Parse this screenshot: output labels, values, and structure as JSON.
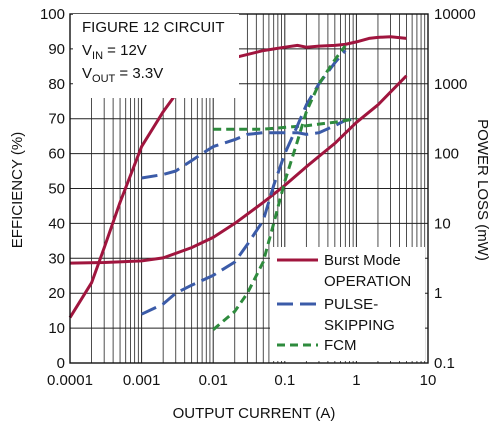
{
  "chart_data": {
    "type": "line",
    "annotation": {
      "line1": "FIGURE 12 CIRCUIT",
      "line2_prefix": "V",
      "line2_sub": "IN",
      "line2_suffix": " = 12V",
      "line3_prefix": "V",
      "line3_sub": "OUT",
      "line3_suffix": " = 3.3V"
    },
    "xlabel": "OUTPUT CURRENT (A)",
    "ylabel_left": "EFFICIENCY (%)",
    "ylabel_right": "POWER LOSS (mW)",
    "x_scale": "log",
    "xlim": [
      0.0001,
      10
    ],
    "y_left_lim": [
      0,
      100
    ],
    "y_right_scale": "log",
    "y_right_lim": [
      0.1,
      10000
    ],
    "x_ticks": [
      "0.0001",
      "0.001",
      "0.01",
      "0.1",
      "1",
      "10"
    ],
    "y_left_ticks": [
      "0",
      "10",
      "20",
      "30",
      "40",
      "50",
      "60",
      "70",
      "80",
      "90",
      "100"
    ],
    "y_right_ticks": [
      "0.1",
      "1",
      "10",
      "100",
      "1000",
      "10000"
    ],
    "grid": true,
    "legend_position": "bottom-right",
    "legend": [
      {
        "line1": "Burst Mode",
        "line2": "OPERATION",
        "color": "#a0153e",
        "dash": "solid"
      },
      {
        "line1": "PULSE-",
        "line2": "SKIPPING",
        "color": "#3b5ba8",
        "dash": "long-dash"
      },
      {
        "line1": "FCM",
        "line2": "",
        "color": "#2e8b3d",
        "dash": "short-dash"
      }
    ],
    "series": [
      {
        "key": "burst_eff",
        "axis": "left",
        "color": "#a0153e",
        "dash": "solid",
        "x": [
          0.0001,
          0.0002,
          0.0003,
          0.0005,
          0.001,
          0.002,
          0.003,
          0.005,
          0.007,
          0.01,
          0.02,
          0.05,
          0.1,
          0.15,
          0.2,
          0.3,
          0.5,
          0.7,
          1,
          1.5,
          2,
          3,
          5
        ],
        "y": [
          13,
          23,
          33,
          46,
          62,
          72,
          77,
          81.5,
          84,
          85.5,
          87.5,
          89.5,
          90.5,
          91,
          90.5,
          90.8,
          91,
          91.3,
          92,
          93,
          93.3,
          93.5,
          93
        ]
      },
      {
        "key": "pulse_eff",
        "axis": "left",
        "color": "#3b5ba8",
        "dash": "long-dash",
        "x": [
          0.001,
          0.002,
          0.003,
          0.005,
          0.007,
          0.01,
          0.02,
          0.03,
          0.05,
          0.07,
          0.1,
          0.15,
          0.2,
          0.3,
          0.5,
          0.7,
          1
        ],
        "y": [
          53,
          54,
          55,
          58,
          60,
          62,
          64,
          65.5,
          66,
          66,
          66,
          66,
          65.5,
          66,
          68,
          69.5,
          70
        ]
      },
      {
        "key": "fcm_eff",
        "axis": "left",
        "color": "#2e8b3d",
        "dash": "short-dash",
        "x": [
          0.01,
          0.02,
          0.05,
          0.1,
          0.2,
          0.5,
          1
        ],
        "y": [
          67,
          67,
          67,
          67.5,
          68,
          69,
          70
        ]
      },
      {
        "key": "burst_loss",
        "axis": "right",
        "color": "#a0153e",
        "dash": "solid",
        "x": [
          0.0001,
          0.0003,
          0.001,
          0.002,
          0.005,
          0.01,
          0.02,
          0.05,
          0.1,
          0.2,
          0.5,
          1,
          2,
          5
        ],
        "y": [
          2.7,
          2.75,
          2.9,
          3.2,
          4.5,
          6.3,
          10,
          20,
          35,
          65,
          140,
          280,
          500,
          1300
        ]
      },
      {
        "key": "pulse_loss",
        "axis": "right",
        "color": "#3b5ba8",
        "dash": "long-dash",
        "x": [
          0.001,
          0.002,
          0.003,
          0.005,
          0.01,
          0.02,
          0.03,
          0.05,
          0.07,
          0.1,
          0.15,
          0.2,
          0.3,
          0.5,
          0.7
        ],
        "y": [
          0.5,
          0.7,
          1.0,
          1.3,
          1.8,
          2.8,
          5,
          11,
          35,
          100,
          250,
          500,
          1000,
          2000,
          3000
        ]
      },
      {
        "key": "fcm_loss",
        "axis": "right",
        "color": "#2e8b3d",
        "dash": "short-dash",
        "x": [
          0.01,
          0.02,
          0.03,
          0.05,
          0.07,
          0.1,
          0.15,
          0.2,
          0.3,
          0.5,
          0.7
        ],
        "y": [
          0.3,
          0.55,
          1.0,
          2.8,
          10,
          40,
          150,
          400,
          1000,
          2200,
          3500
        ]
      }
    ]
  }
}
